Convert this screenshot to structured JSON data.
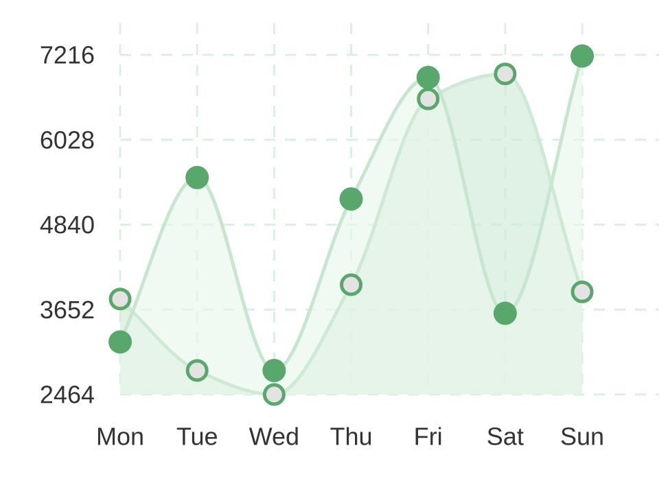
{
  "chart_data": {
    "type": "area",
    "title": "",
    "xlabel": "",
    "ylabel": "",
    "categories": [
      "Mon",
      "Tue",
      "Wed",
      "Thu",
      "Fri",
      "Sat",
      "Sun"
    ],
    "y_ticks": [
      "2464",
      "3652",
      "4840",
      "6028",
      "7216"
    ],
    "ylim": [
      2464,
      7216
    ],
    "grid": true,
    "grid_style": "dashed",
    "smooth": true,
    "legend": "none",
    "series": [
      {
        "values": [
          3800,
          2800,
          2464,
          4000,
          6600,
          6950,
          3900
        ],
        "marker": "hollow",
        "fill_color": "#cfe9d7",
        "line_color": "#cfe9d7"
      },
      {
        "values": [
          3200,
          5500,
          2800,
          5200,
          6900,
          3600,
          7200
        ],
        "marker": "filled",
        "fill_color": "#e9f6ec",
        "line_color": "#c7e6cf"
      }
    ],
    "colors": {
      "marker": "#57a86a",
      "marker_hollow_fill": "#e3e3e3",
      "grid": "#dcefe2"
    }
  }
}
